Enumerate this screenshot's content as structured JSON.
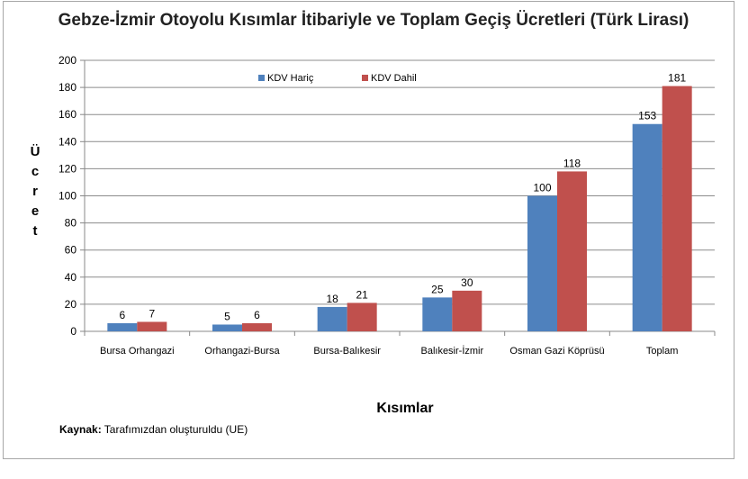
{
  "chart_data": {
    "type": "bar",
    "title": "Gebze-İzmir Otoyolu Kısımlar İtibariyle ve Toplam Geçiş Ücretleri (Türk Lirası)",
    "xlabel": "Kısımlar",
    "ylabel": "Ücret",
    "categories": [
      "Bursa Orhangazi",
      "Orhangazi-Bursa",
      "Bursa-Balıkesir",
      "Balıkesir-İzmir",
      "Osman Gazi Köprüsü",
      "Toplam"
    ],
    "series": [
      {
        "name": "KDV Hariç",
        "values": [
          6,
          5,
          18,
          25,
          100,
          153
        ],
        "color": "#4f81bd"
      },
      {
        "name": "KDV Dahil",
        "values": [
          7,
          6,
          21,
          30,
          118,
          181
        ],
        "color": "#c0504d"
      }
    ],
    "ylim": [
      0,
      200
    ],
    "yticks": [
      0,
      20,
      40,
      60,
      80,
      100,
      120,
      140,
      160,
      180,
      200
    ],
    "grid": true,
    "legend_position": "top-center"
  },
  "source": {
    "label": "Kaynak:",
    "text": " Tarafımızdan oluşturuldu (UE)"
  }
}
